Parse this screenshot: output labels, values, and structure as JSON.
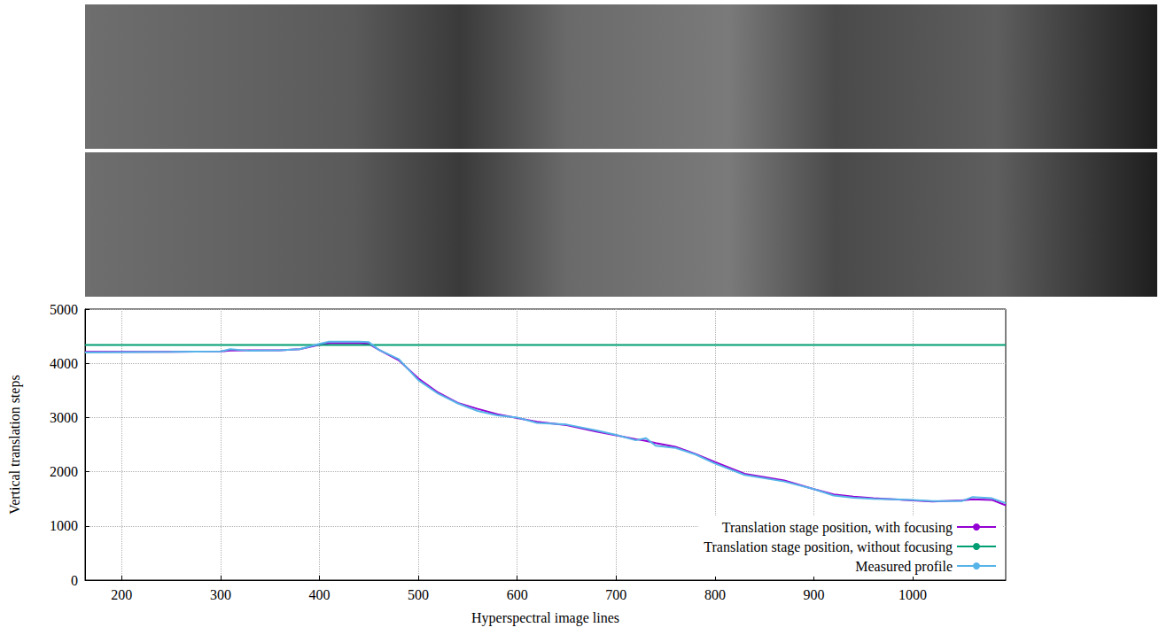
{
  "chart_data": {
    "type": "line",
    "x_label": "Hyperspectral image lines",
    "y_label": "Vertical translation steps",
    "x": [
      163,
      250,
      300,
      310,
      330,
      360,
      380,
      400,
      410,
      440,
      450,
      460,
      480,
      500,
      520,
      540,
      560,
      580,
      600,
      620,
      650,
      680,
      700,
      720,
      730,
      740,
      760,
      780,
      800,
      830,
      870,
      900,
      920,
      940,
      960,
      1000,
      1020,
      1050,
      1060,
      1080,
      1094
    ],
    "series": [
      {
        "name": "Translation stage position, with focusing",
        "color": "#9400d3",
        "values": [
          4210,
          4210,
          4220,
          4235,
          4240,
          4240,
          4260,
          4340,
          4370,
          4370,
          4360,
          4250,
          4060,
          3720,
          3460,
          3270,
          3160,
          3060,
          2990,
          2920,
          2860,
          2740,
          2670,
          2600,
          2570,
          2530,
          2460,
          2330,
          2180,
          1960,
          1840,
          1680,
          1580,
          1540,
          1510,
          1470,
          1450,
          1470,
          1490,
          1480,
          1380
        ]
      },
      {
        "name": "Translation stage position, without focusing",
        "color": "#009e73",
        "values": [
          4340,
          4340,
          4340,
          4340,
          4340,
          4340,
          4340,
          4340,
          4340,
          4340,
          4340,
          4340,
          4340,
          4340,
          4340,
          4340,
          4340,
          4340,
          4340,
          4340,
          4340,
          4340,
          4340,
          4340,
          4340,
          4340,
          4340,
          4340,
          4340,
          4340,
          4340,
          4340,
          4340,
          4340,
          4340,
          4340,
          4340,
          4340,
          4340,
          4340,
          4340
        ]
      },
      {
        "name": "Measured profile",
        "color": "#56b4e9",
        "values": [
          4200,
          4210,
          4220,
          4260,
          4230,
          4240,
          4260,
          4360,
          4400,
          4400,
          4390,
          4250,
          4080,
          3690,
          3440,
          3260,
          3120,
          3040,
          3000,
          2900,
          2870,
          2760,
          2680,
          2580,
          2620,
          2480,
          2440,
          2320,
          2150,
          1940,
          1820,
          1680,
          1560,
          1520,
          1500,
          1480,
          1460,
          1460,
          1530,
          1510,
          1420
        ]
      }
    ],
    "xlim": [
      163,
      1094
    ],
    "xticks": [
      200,
      300,
      400,
      500,
      600,
      700,
      800,
      900,
      1000
    ],
    "ylim": [
      0,
      5000
    ],
    "yticks": [
      0,
      1000,
      2000,
      3000,
      4000,
      5000
    ],
    "grid": true,
    "legend": "lower right"
  }
}
